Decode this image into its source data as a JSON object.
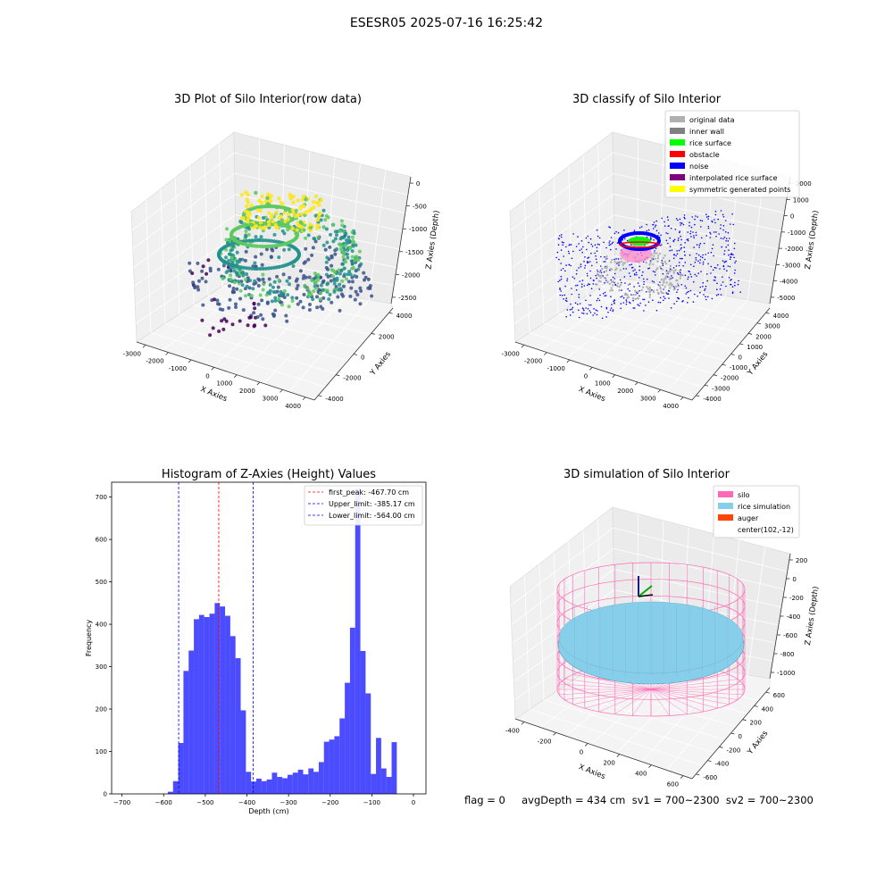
{
  "figure": {
    "suptitle": "ESESR05 2025-07-16 16:25:42",
    "status_line": "flag = 0     avgDepth = 434 cm  sv1 = 700~2300  sv2 = 700~2300"
  },
  "chart_data": [
    {
      "type": "scatter3d",
      "title": "3D Plot of Silo Interior(row data)",
      "xlabel": "X Axies",
      "ylabel": "Y Axies",
      "zlabel": "Z Axies (Depth)",
      "x_ticks": [
        "-3000",
        "-2000",
        "-1000",
        "0",
        "1000",
        "2000",
        "3000",
        "4000"
      ],
      "y_ticks": [
        "-4000",
        "-2000",
        "0",
        "2000",
        "4000"
      ],
      "z_ticks": [
        "-2500",
        "-2000",
        "-1500",
        "-1000",
        "-500",
        "0"
      ],
      "colormap": [
        "#440154",
        "#3b528b",
        "#21918c",
        "#5ec962",
        "#fde725"
      ],
      "grid": true
    },
    {
      "type": "scatter3d",
      "title": "3D classify of Silo Interior",
      "xlabel": "X Axies",
      "ylabel": "Y Axies",
      "zlabel": "Z Axies (Depth)",
      "x_ticks": [
        "-3000",
        "-2000",
        "-1000",
        "0",
        "1000",
        "2000",
        "3000",
        "4000"
      ],
      "y_ticks": [
        "-4000",
        "-3000",
        "-2000",
        "-1000",
        "0",
        "1000",
        "2000",
        "3000",
        "4000"
      ],
      "z_ticks": [
        "-5000",
        "-4000",
        "-3000",
        "-2000",
        "-1000",
        "0",
        "1000",
        "2000"
      ],
      "legend_position": "top-right",
      "legend": [
        {
          "label": "original data",
          "color": "#b0b0b0"
        },
        {
          "label": "inner wall",
          "color": "#808080"
        },
        {
          "label": "rice surface",
          "color": "#00ff00"
        },
        {
          "label": "obstacle",
          "color": "#ff0000"
        },
        {
          "label": "noise",
          "color": "#0000ff"
        },
        {
          "label": "interpolated rice surface",
          "color": "#800080"
        },
        {
          "label": "symmetric generated points",
          "color": "#ffff00"
        }
      ],
      "grid": true
    },
    {
      "type": "bar",
      "title": "Histogram of Z-Axies (Height) Values",
      "xlabel": "Depth (cm)",
      "ylabel": "Frequency",
      "xlim": [
        -725,
        30
      ],
      "ylim": [
        0,
        735
      ],
      "x_ticks": [
        -700,
        -600,
        -500,
        -400,
        -300,
        -200,
        -100,
        0
      ],
      "y_ticks": [
        0,
        100,
        200,
        300,
        400,
        500,
        600,
        700
      ],
      "bin_width": 12.5,
      "color": "#0000ff",
      "bins": [
        [
          -590,
          5
        ],
        [
          -577.5,
          30
        ],
        [
          -565,
          120
        ],
        [
          -552.5,
          290
        ],
        [
          -540,
          338
        ],
        [
          -527.5,
          412
        ],
        [
          -515,
          422
        ],
        [
          -502.5,
          417
        ],
        [
          -490,
          425
        ],
        [
          -477.5,
          450
        ],
        [
          -465,
          442
        ],
        [
          -452.5,
          420
        ],
        [
          -440,
          372
        ],
        [
          -427.5,
          320
        ],
        [
          -415,
          197
        ],
        [
          -402.5,
          52
        ],
        [
          -390,
          29
        ],
        [
          -377.5,
          36
        ],
        [
          -365,
          30
        ],
        [
          -352.5,
          34
        ],
        [
          -340,
          50
        ],
        [
          -327.5,
          40
        ],
        [
          -315,
          37
        ],
        [
          -302.5,
          45
        ],
        [
          -290,
          50
        ],
        [
          -277.5,
          57
        ],
        [
          -265,
          46
        ],
        [
          -252.5,
          60
        ],
        [
          -240,
          52
        ],
        [
          -227.5,
          75
        ],
        [
          -215,
          123
        ],
        [
          -202.5,
          128
        ],
        [
          -190,
          136
        ],
        [
          -177.5,
          178
        ],
        [
          -165,
          262
        ],
        [
          -152.5,
          392
        ],
        [
          -140,
          720
        ],
        [
          -127.5,
          337
        ],
        [
          -115,
          237
        ],
        [
          -102.5,
          47
        ],
        [
          -90,
          132
        ],
        [
          -77.5,
          60
        ],
        [
          -65,
          40
        ],
        [
          -52.5,
          122
        ]
      ],
      "vlines": [
        {
          "label": "first_peak: -467.70 cm",
          "x": -467.7,
          "color": "#ff0000"
        },
        {
          "label": "Upper_limit: -385.17 cm",
          "x": -385.17,
          "color": "#0000ff"
        },
        {
          "label": "Lower_limit: -564.00 cm",
          "x": -564.0,
          "color": "#0000ff"
        }
      ],
      "legend_position": "top-right"
    },
    {
      "type": "surface3d",
      "title": "3D simulation of Silo Interior",
      "xlabel": "X Axies",
      "ylabel": "Y Axies",
      "zlabel": "Z Axies (Depth)",
      "x_ticks": [
        "-400",
        "-200",
        "0",
        "200",
        "400",
        "600"
      ],
      "y_ticks": [
        "-600",
        "-400",
        "-200",
        "0",
        "200",
        "400",
        "600"
      ],
      "z_ticks": [
        "-1000",
        "-800",
        "-600",
        "-400",
        "-200",
        "0",
        "200"
      ],
      "legend_position": "top-right",
      "legend": [
        {
          "label": "silo",
          "color": "#ff69b4"
        },
        {
          "label": "rice simulation",
          "color": "#87ceeb"
        },
        {
          "label": "auger",
          "color": "#ff4500"
        },
        {
          "label": "center(102,-12)",
          "color": ""
        }
      ],
      "grid": true
    }
  ]
}
